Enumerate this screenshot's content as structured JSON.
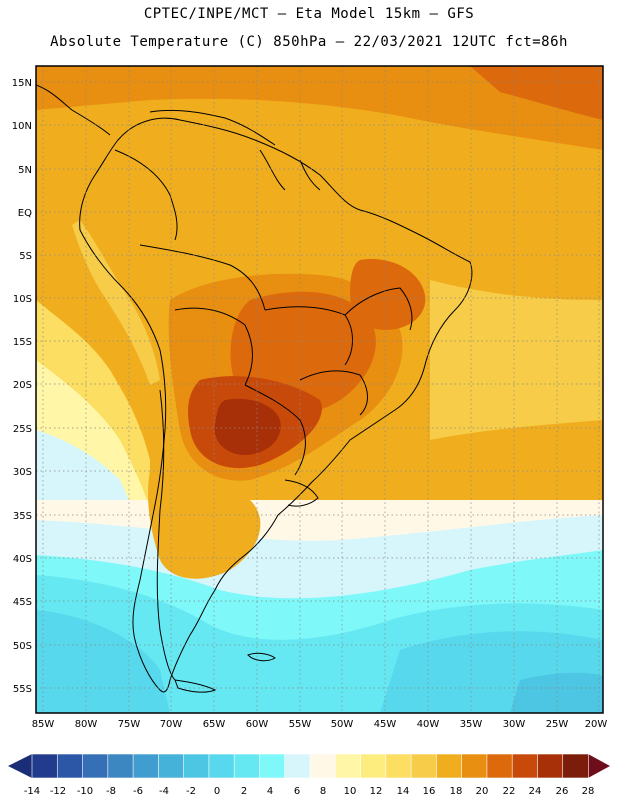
{
  "header": {
    "line1": "CPTEC/INPE/MCT –  Eta Model 15km – GFS",
    "line2": "Absolute Temperature (C) 850hPa – 22/03/2021 12UTC fct=86h"
  },
  "axes": {
    "lat_labels": [
      "15N",
      "10N",
      "5N",
      "EQ",
      "5S",
      "10S",
      "15S",
      "20S",
      "25S",
      "30S",
      "35S",
      "40S",
      "45S",
      "50S",
      "55S"
    ],
    "lon_labels": [
      "85W",
      "80W",
      "75W",
      "70W",
      "65W",
      "60W",
      "55W",
      "50W",
      "45W",
      "40W",
      "35W",
      "30W",
      "25W",
      "20W"
    ]
  },
  "colorbar": {
    "labels": [
      "-14",
      "-12",
      "-10",
      "-8",
      "-6",
      "-4",
      "-2",
      "0",
      "2",
      "4",
      "6",
      "8",
      "10",
      "12",
      "14",
      "16",
      "18",
      "20",
      "22",
      "24",
      "26",
      "28"
    ],
    "colors": [
      "#233b8c",
      "#2c56a6",
      "#3570b6",
      "#3c86c2",
      "#419ccf",
      "#45b2da",
      "#4cc6e3",
      "#58d8ec",
      "#66e8f2",
      "#7ef8f8",
      "#d6f6fc",
      "#fff8e6",
      "#fff6a8",
      "#fdec7e",
      "#fbde62",
      "#f7cc48",
      "#f0ae1e",
      "#e88e10",
      "#dc6a0c",
      "#c84a0a",
      "#a83008",
      "#7c1c0a"
    ],
    "low_arrow_color": "#1a2e78",
    "high_arrow_color": "#6e0e1a"
  }
}
